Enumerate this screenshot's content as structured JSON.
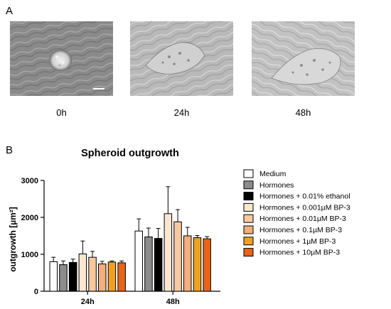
{
  "panel_a": {
    "letter": "A",
    "images": [
      {
        "label": "0h"
      },
      {
        "label": "24h"
      },
      {
        "label": "48h"
      }
    ]
  },
  "panel_b": {
    "letter": "B"
  },
  "chart_data": {
    "type": "bar",
    "title": "Spheroid outgrowth",
    "xlabel": "",
    "ylabel": "outgrowth [µm²]",
    "ylim": [
      0,
      3000
    ],
    "yticks": [
      "0",
      "1000",
      "2000",
      "3000"
    ],
    "categories": [
      "24h",
      "48h"
    ],
    "legend_position": "right",
    "series": [
      {
        "name": "Medium",
        "color": "#ffffff",
        "values": [
          800,
          1630
        ],
        "errors": [
          120,
          330
        ]
      },
      {
        "name": "Hormones",
        "color": "#8c8c8c",
        "values": [
          720,
          1470
        ],
        "errors": [
          100,
          240
        ]
      },
      {
        "name": "Hormones + 0.01% ethanol",
        "color": "#000000",
        "values": [
          780,
          1430
        ],
        "errors": [
          90,
          270
        ]
      },
      {
        "name": "Hormones + 0.001µM BP-3",
        "color": "#fbe6cf",
        "values": [
          1010,
          2100
        ],
        "errors": [
          350,
          730
        ]
      },
      {
        "name": "Hormones + 0.01µM BP-3",
        "color": "#f7c9a0",
        "values": [
          920,
          1880
        ],
        "errors": [
          160,
          330
        ]
      },
      {
        "name": "Hormones + 0.1µM BP-3",
        "color": "#f4ad7d",
        "values": [
          740,
          1500
        ],
        "errors": [
          70,
          230
        ]
      },
      {
        "name": "Hormones + 1µM BP-3",
        "color": "#f0a020",
        "values": [
          790,
          1450
        ],
        "errors": [
          30,
          60
        ]
      },
      {
        "name": "Hormones + 10µM BP-3",
        "color": "#e8641a",
        "values": [
          770,
          1420
        ],
        "errors": [
          50,
          60
        ]
      }
    ]
  }
}
